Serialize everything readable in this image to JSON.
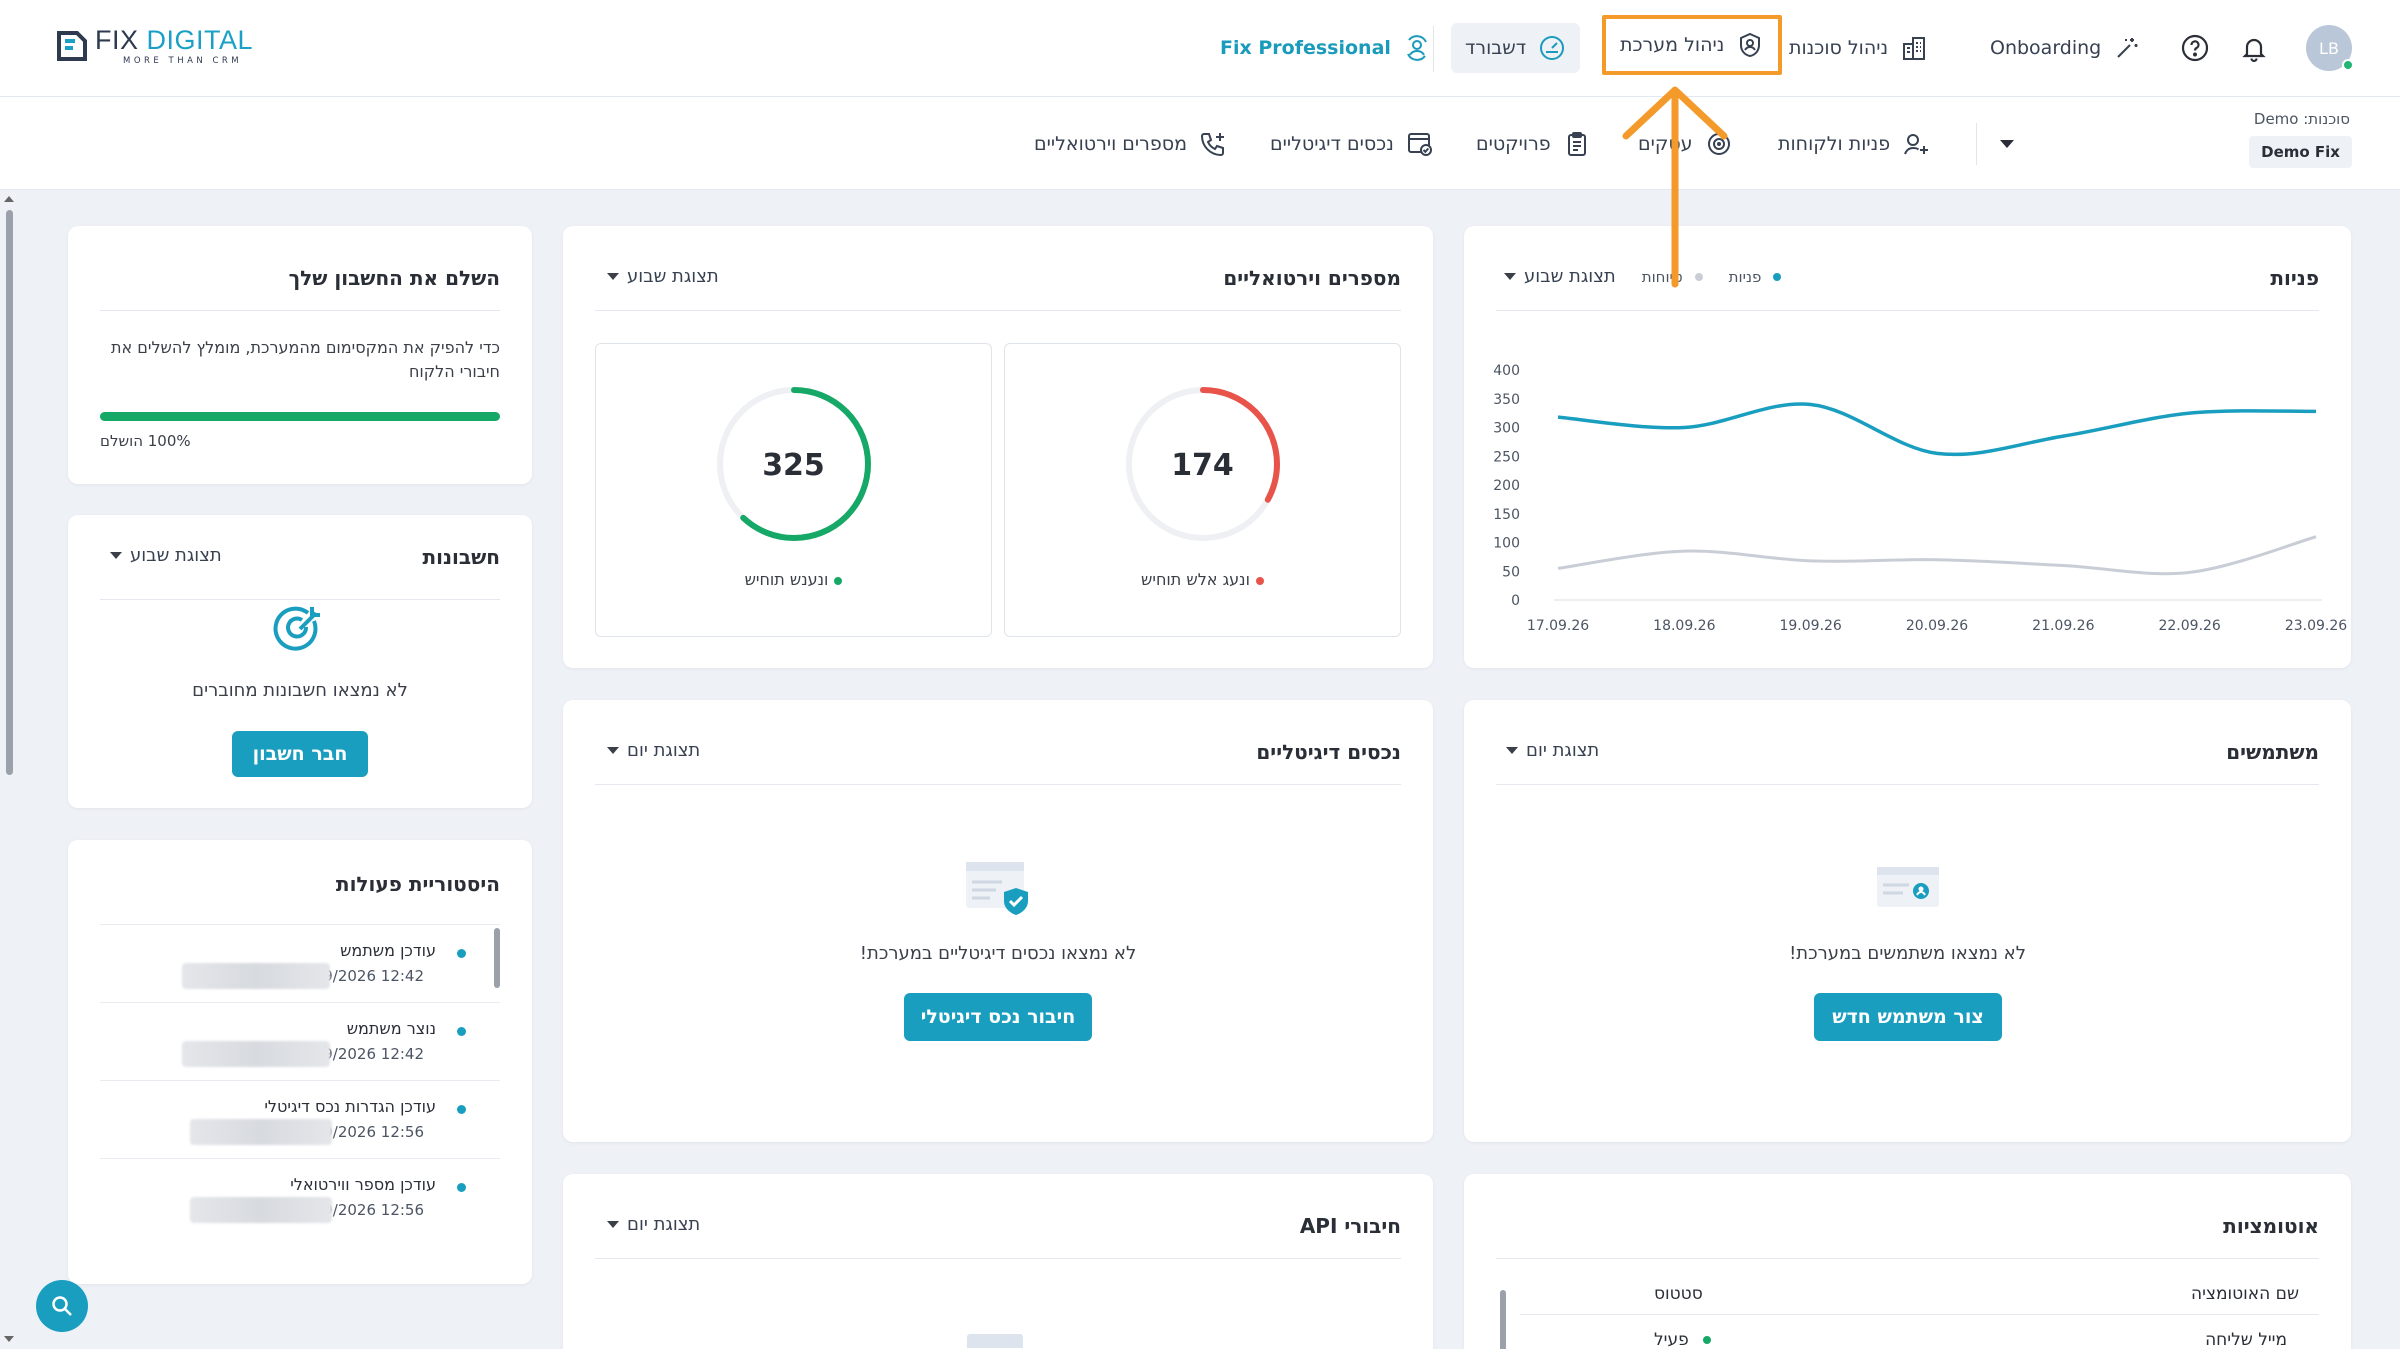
{
  "header": {
    "logo": {
      "name_a": "FIX ",
      "name_b": "DIGITAL",
      "tagline": "MORE THAN CRM"
    },
    "nav": {
      "professional": "Fix Professional",
      "dashboard": "דשבורד",
      "admin": "ניהול מערכת",
      "agencies": "ניהול סוכנות",
      "onboarding": "Onboarding"
    },
    "avatar_initials": "LB"
  },
  "subnav": {
    "agency_label": "סוכנות: Demo",
    "agency_value": "Demo Fix",
    "items": [
      {
        "label": "פניות ולקוחות",
        "icon": "user-add-icon"
      },
      {
        "label": "עסקים",
        "icon": "target-icon"
      },
      {
        "label": "פרויקטים",
        "icon": "clipboard-icon"
      },
      {
        "label": "נכסים דיגיטליים",
        "icon": "browser-check-icon"
      },
      {
        "label": "מספרים וירטואליים",
        "icon": "phone-add-icon"
      }
    ]
  },
  "leads_card": {
    "title": "פניות",
    "view": "תצוגת שבוע",
    "legend": [
      {
        "name": "פניות",
        "color": "#1a9ebf"
      },
      {
        "name": "טיוחות",
        "color": "#c9ced6"
      }
    ]
  },
  "chart_data": {
    "type": "line",
    "x": [
      "17.09.26",
      "18.09.26",
      "19.09.26",
      "20.09.26",
      "21.09.26",
      "22.09.26",
      "23.09.26"
    ],
    "y_ticks": [
      "400",
      "350",
      "300",
      "250",
      "200",
      "150",
      "100",
      "50",
      "0"
    ],
    "ylim": [
      0,
      400
    ],
    "series": [
      {
        "name": "פניות",
        "color": "#1a9ebf",
        "values": [
          318,
          300,
          340,
          255,
          285,
          325,
          328
        ]
      },
      {
        "name": "טיוחות",
        "color": "#c9ced6",
        "values": [
          55,
          85,
          68,
          70,
          60,
          48,
          110
        ]
      }
    ]
  },
  "virtual_card": {
    "title": "מספרים וירטואליים",
    "view": "תצוגת שבוע",
    "rings": [
      {
        "value": "174",
        "label": "ונעג אלש תוחיש",
        "color": "#e8534a",
        "fraction": 0.33
      },
      {
        "value": "325",
        "label": "ונענש תוחיש",
        "color": "#16a866",
        "fraction": 0.62
      }
    ]
  },
  "account_card": {
    "title": "השלם את החשבון שלך",
    "text": "כדי להפיק את המקסימום מהמערכת, מומלץ להשלים את חיבורי הלקוח",
    "progress_label": "100% הושלם",
    "progress": 1.0
  },
  "accounts_card": {
    "title": "חשבונות",
    "view": "תצוגת שבוע",
    "empty": "לא נמצאו חשבונות מחוברים",
    "button": "חבר חשבון"
  },
  "users_card": {
    "title": "משתמשים",
    "view": "תצוגת יום",
    "empty": "לא נמצאו משתמשים במערכת!",
    "button": "צור משתמש חדש"
  },
  "assets_card": {
    "title": "נכסים דיגיטליים",
    "view": "תצוגת יום",
    "empty": "לא נמצאו נכסים דיגיטליים במערכת!",
    "button": "חיבור נכס דיגיטלי"
  },
  "history_card": {
    "title": "היסטוריית פעולות",
    "items": [
      {
        "title": "עודכן משתמש",
        "date": "17/09/2026 12:42"
      },
      {
        "title": "נוצר משתמש",
        "date": "17/09/2026 12:42"
      },
      {
        "title": "עודכן הגדרות נכס דיגיטלי",
        "date": "14/09/2026 12:56"
      },
      {
        "title": "עודכן מספר ווירטואלי",
        "date": "14/09/2026 12:56"
      }
    ]
  },
  "automations_card": {
    "title": "אוטומציות",
    "col_name": "שם האוטומציה",
    "col_status": "סטטוס",
    "row_name": "מייל שליחה",
    "row_status": "פעיל"
  },
  "api_card": {
    "title": "חיבורי API",
    "view": "תצוגת יום"
  },
  "colors": {
    "accent": "#1a9ebf",
    "highlight": "#f39a2b",
    "success": "#16a866",
    "danger": "#e8534a"
  }
}
